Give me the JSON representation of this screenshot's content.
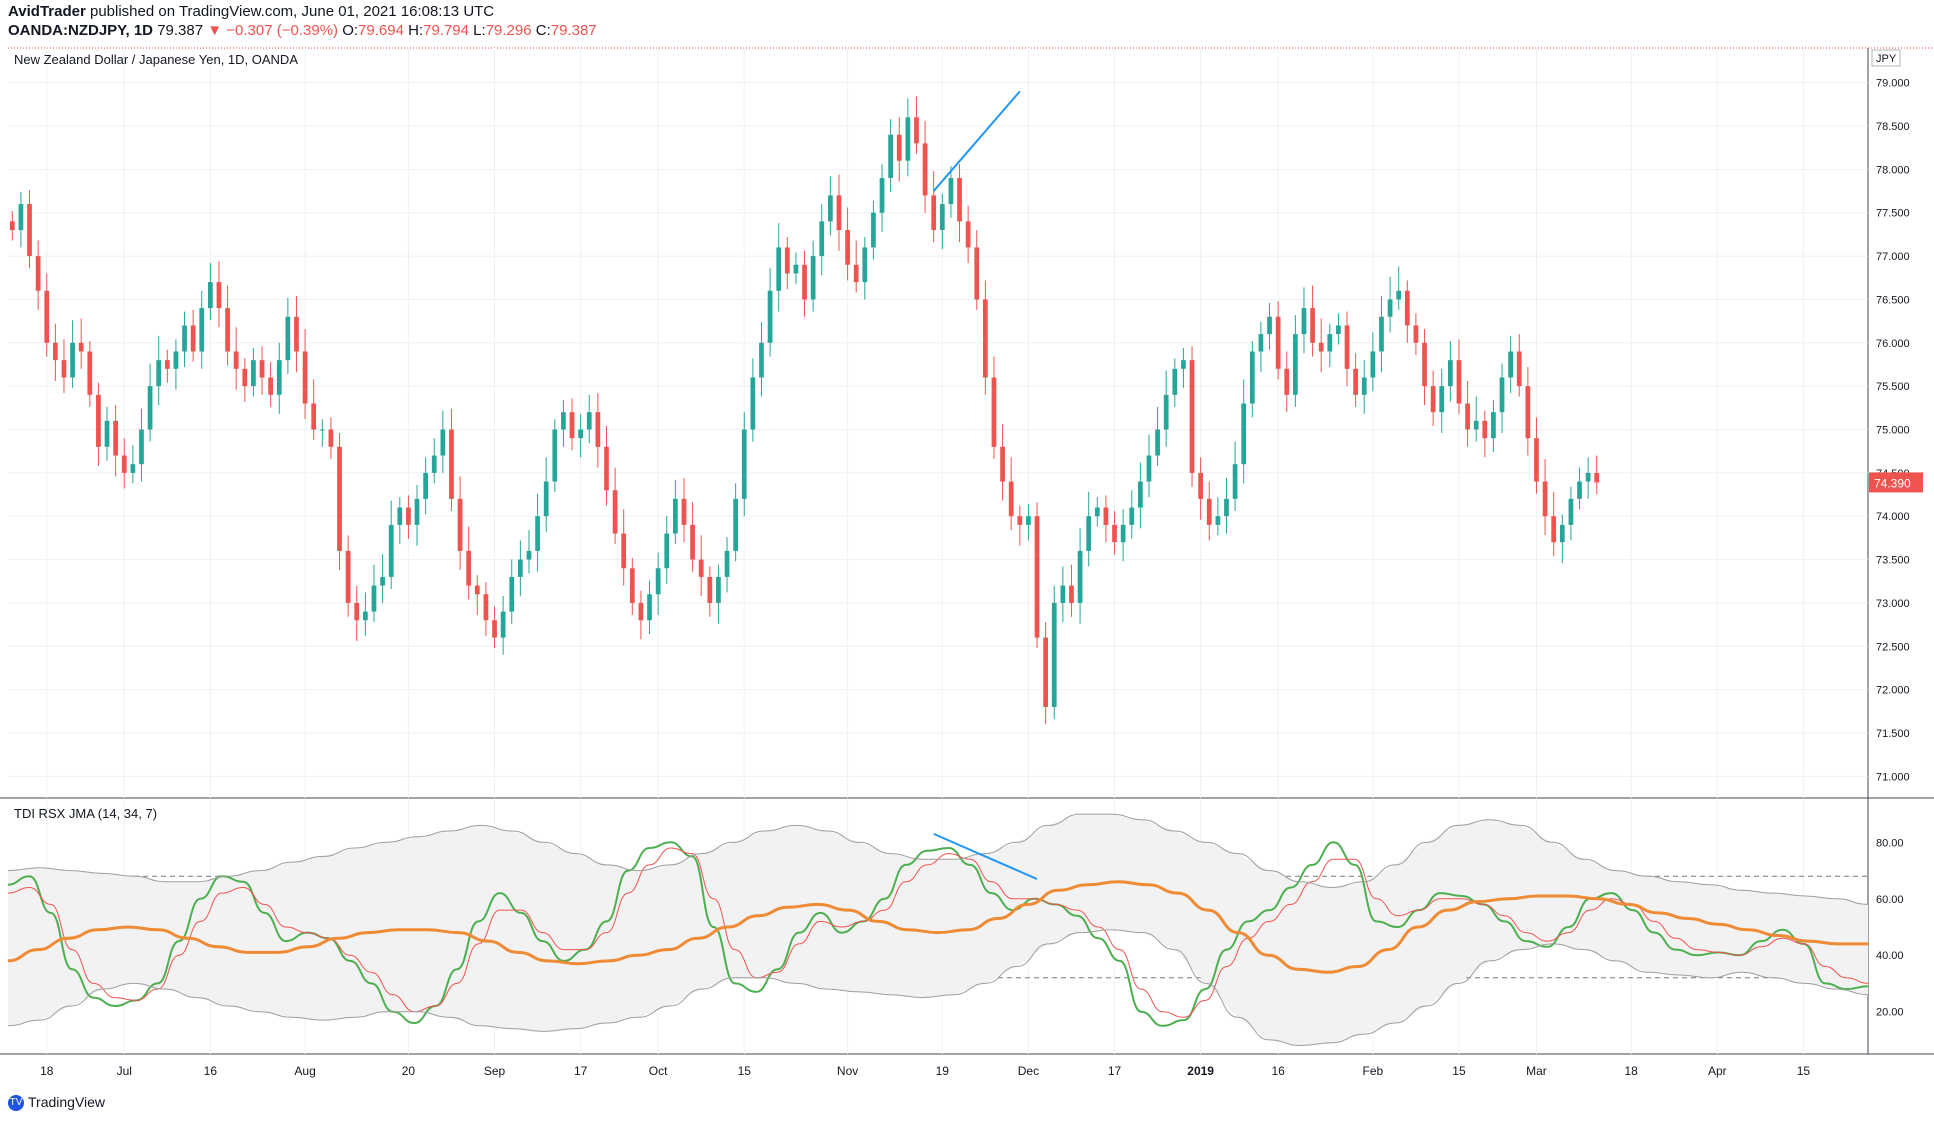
{
  "header": {
    "publisher": "AvidTrader",
    "published_text": "published on TradingView.com, June 01, 2021 16:08:13 UTC",
    "symbol": "OANDA:NZDJPY, 1D",
    "last": "79.387",
    "change": "▼ −0.307 (−0.39%)",
    "o_label": "O:",
    "o": "79.694",
    "h_label": "H:",
    "h": "79.794",
    "l_label": "L:",
    "l": "79.296",
    "c_label": "C:",
    "c": "79.387"
  },
  "chart_data": [
    {
      "type": "candlestick",
      "title": "New Zealand Dollar / Japanese Yen, 1D, OANDA",
      "currency_label": "JPY",
      "last_price_label": "74.390",
      "ylim": [
        70.75,
        79.4
      ],
      "ytick_labels": [
        "79.000",
        "78.500",
        "78.000",
        "77.500",
        "77.000",
        "76.500",
        "76.000",
        "75.500",
        "75.000",
        "74.500",
        "74.000",
        "73.500",
        "73.000",
        "72.500",
        "72.000",
        "71.500",
        "71.000"
      ],
      "yticks": [
        79.0,
        78.5,
        78.0,
        77.5,
        77.0,
        76.5,
        76.0,
        75.5,
        75.0,
        74.5,
        74.0,
        73.5,
        73.0,
        72.5,
        72.0,
        71.5,
        71.0
      ],
      "xtick_labels": [
        "18",
        "Jul",
        "16",
        "Aug",
        "20",
        "Sep",
        "17",
        "Oct",
        "15",
        "Nov",
        "19",
        "Dec",
        "17",
        "2019",
        "16",
        "Feb",
        "15",
        "Mar",
        "18",
        "Apr",
        "15"
      ],
      "xtick_index": [
        4,
        13,
        23,
        34,
        46,
        56,
        66,
        75,
        85,
        97,
        108,
        118,
        128,
        138,
        147,
        158,
        168,
        177,
        188,
        198,
        208
      ],
      "x_total_bars": 216,
      "closes": [
        77.3,
        77.6,
        77.0,
        76.6,
        76.0,
        75.8,
        75.6,
        76.0,
        75.9,
        75.4,
        74.8,
        75.1,
        74.7,
        74.5,
        74.6,
        75.0,
        75.5,
        75.8,
        75.7,
        75.9,
        76.2,
        75.9,
        76.4,
        76.7,
        76.4,
        75.9,
        75.7,
        75.5,
        75.8,
        75.6,
        75.4,
        75.8,
        76.3,
        75.9,
        75.3,
        75.0,
        75.0,
        74.8,
        73.6,
        73.0,
        72.8,
        72.9,
        73.2,
        73.3,
        73.9,
        74.1,
        73.9,
        74.2,
        74.5,
        74.7,
        75.0,
        74.2,
        73.6,
        73.2,
        73.1,
        72.8,
        72.6,
        72.9,
        73.3,
        73.5,
        73.6,
        74.0,
        74.4,
        75.0,
        75.2,
        74.9,
        75.0,
        75.2,
        74.8,
        74.3,
        73.8,
        73.4,
        73.0,
        72.8,
        73.1,
        73.4,
        73.8,
        74.2,
        73.9,
        73.5,
        73.3,
        73.0,
        73.3,
        73.6,
        74.2,
        75.0,
        75.6,
        76.0,
        76.6,
        77.1,
        76.8,
        76.9,
        76.5,
        77.0,
        77.4,
        77.7,
        77.3,
        76.9,
        76.7,
        77.1,
        77.5,
        77.9,
        78.4,
        78.1,
        78.6,
        78.3,
        77.7,
        77.3,
        77.6,
        77.9,
        77.4,
        77.1,
        76.5,
        75.6,
        74.8,
        74.4,
        74.0,
        73.9,
        74.0,
        72.6,
        71.8,
        73.0,
        73.2,
        73.0,
        73.6,
        74.0,
        74.1,
        73.9,
        73.7,
        73.9,
        74.1,
        74.4,
        74.7,
        75.0,
        75.4,
        75.7,
        75.8,
        74.5,
        74.2,
        73.9,
        74.0,
        74.2,
        74.6,
        75.3,
        75.9,
        76.1,
        76.3,
        75.7,
        75.4,
        76.1,
        76.4,
        76.0,
        75.9,
        76.1,
        76.2,
        75.7,
        75.4,
        75.6,
        75.9,
        76.3,
        76.5,
        76.6,
        76.2,
        76.0,
        75.5,
        75.2,
        75.5,
        75.8,
        75.3,
        75.0,
        75.1,
        74.9,
        75.2,
        75.6,
        75.9,
        75.5,
        74.9,
        74.4,
        74.0,
        73.7,
        73.9,
        74.2,
        74.4,
        74.5,
        74.39
      ],
      "annotations": [
        {
          "from_index": 107,
          "to_index": 117,
          "from_price": 77.75,
          "to_price": 78.9,
          "color": "#2196f3"
        }
      ]
    },
    {
      "type": "line",
      "title": "TDI RSX JMA (14, 34, 7)",
      "ylim": [
        5,
        95
      ],
      "ytick_labels": [
        "80.00",
        "60.00",
        "40.00",
        "20.00"
      ],
      "yticks": [
        80,
        60,
        40,
        20
      ],
      "levels": [
        68,
        32
      ],
      "series": [
        {
          "role": "rsx_fast",
          "color": "#4caf50",
          "values": [
            65,
            68,
            55,
            35,
            25,
            22,
            24,
            30,
            45,
            60,
            68,
            66,
            55,
            45,
            48,
            46,
            38,
            30,
            20,
            16,
            22,
            35,
            52,
            62,
            55,
            45,
            38,
            42,
            52,
            70,
            78,
            80,
            75,
            50,
            30,
            27,
            35,
            48,
            55,
            48,
            52,
            60,
            72,
            77,
            78,
            72,
            62,
            56,
            60,
            58,
            54,
            46,
            38,
            20,
            15,
            17,
            28,
            42,
            52,
            56,
            64,
            72,
            80,
            72,
            52,
            50,
            56,
            62,
            61,
            58,
            52,
            45,
            43,
            50,
            60,
            62,
            56,
            48,
            42,
            40,
            41,
            40,
            45,
            49,
            44,
            30,
            28,
            29
          ]
        },
        {
          "role": "rsx_slow",
          "color": "#ef5350",
          "values": [
            62,
            64,
            58,
            42,
            30,
            25,
            24,
            28,
            40,
            52,
            62,
            64,
            58,
            50,
            48,
            46,
            40,
            34,
            26,
            20,
            22,
            30,
            44,
            56,
            56,
            48,
            42,
            42,
            48,
            62,
            72,
            78,
            76,
            60,
            42,
            32,
            34,
            44,
            52,
            50,
            52,
            56,
            66,
            72,
            76,
            74,
            66,
            60,
            60,
            58,
            56,
            50,
            42,
            28,
            20,
            18,
            24,
            36,
            46,
            52,
            58,
            66,
            74,
            74,
            60,
            54,
            56,
            60,
            60,
            58,
            54,
            48,
            45,
            48,
            56,
            60,
            58,
            52,
            46,
            42,
            41,
            40,
            43,
            46,
            44,
            36,
            32,
            30
          ]
        },
        {
          "role": "jma_signal",
          "color": "#ef8a35",
          "values": [
            38,
            42,
            46,
            49,
            50,
            49,
            46,
            43,
            41,
            41,
            43,
            46,
            48,
            49,
            49,
            48,
            45,
            41,
            38,
            37,
            38,
            40,
            42,
            46,
            50,
            54,
            57,
            58,
            56,
            52,
            49,
            48,
            49,
            53,
            58,
            63,
            65,
            66,
            65,
            62,
            56,
            48,
            40,
            35,
            34,
            36,
            42,
            50,
            56,
            59,
            60,
            61,
            61,
            60,
            58,
            55,
            53,
            51,
            49,
            47,
            45,
            44,
            44
          ]
        },
        {
          "role": "upper_band",
          "color": "#9e9e9e",
          "values": [
            70,
            71,
            70,
            69,
            68,
            66,
            66,
            68,
            70,
            73,
            75,
            78,
            80,
            82,
            84,
            86,
            84,
            80,
            76,
            72,
            70,
            72,
            76,
            80,
            84,
            86,
            84,
            80,
            76,
            74,
            74,
            76,
            80,
            86,
            90,
            90,
            88,
            84,
            80,
            76,
            70,
            66,
            64,
            66,
            72,
            80,
            86,
            88,
            86,
            80,
            74,
            70,
            68,
            66,
            65,
            63,
            62,
            61,
            60,
            58
          ]
        },
        {
          "role": "lower_band",
          "color": "#9e9e9e",
          "values": [
            15,
            17,
            22,
            28,
            30,
            28,
            25,
            22,
            20,
            18,
            17,
            18,
            20,
            20,
            18,
            15,
            14,
            13,
            14,
            16,
            18,
            22,
            28,
            32,
            32,
            30,
            28,
            27,
            26,
            25,
            26,
            30,
            36,
            44,
            48,
            49,
            48,
            42,
            30,
            18,
            10,
            8,
            9,
            12,
            16,
            22,
            30,
            38,
            42,
            44,
            42,
            38,
            34,
            33,
            32,
            34,
            32,
            30,
            28,
            26
          ]
        }
      ],
      "xtick_labels": [
        "18",
        "Jul",
        "16",
        "Aug",
        "20",
        "Sep",
        "17",
        "Oct",
        "15",
        "Nov",
        "19",
        "Dec",
        "17",
        "2019",
        "16",
        "Feb",
        "15",
        "Mar",
        "18",
        "Apr",
        "15"
      ],
      "annotations": [
        {
          "from_index": 107,
          "to_index": 119,
          "from_value": 83,
          "to_value": 67,
          "color": "#2196f3"
        }
      ]
    }
  ],
  "footer": {
    "brand": "TradingView"
  }
}
